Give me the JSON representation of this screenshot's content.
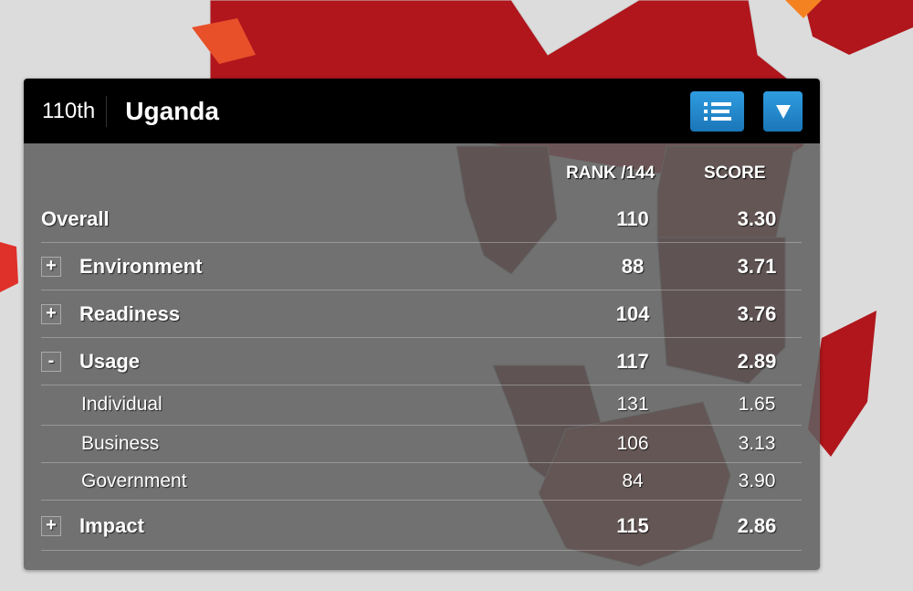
{
  "header": {
    "rank": "110th",
    "country": "Uganda"
  },
  "columns": {
    "rank": "RANK /144",
    "score": "SCORE"
  },
  "rows": [
    {
      "label": "Overall",
      "rank": "110",
      "score": "3.30",
      "toggle": ""
    },
    {
      "label": "Environment",
      "rank": "88",
      "score": "3.71",
      "toggle": "+"
    },
    {
      "label": "Readiness",
      "rank": "104",
      "score": "3.76",
      "toggle": "+"
    },
    {
      "label": "Usage",
      "rank": "117",
      "score": "2.89",
      "toggle": "-"
    },
    {
      "label": "Individual",
      "rank": "131",
      "score": "1.65"
    },
    {
      "label": "Business",
      "rank": "106",
      "score": "3.13"
    },
    {
      "label": "Government",
      "rank": "84",
      "score": "3.90"
    },
    {
      "label": "Impact",
      "rank": "115",
      "score": "2.86",
      "toggle": "+"
    }
  ],
  "icons": {
    "list": "list-icon",
    "dropdown": "triangle-down-icon"
  },
  "colors": {
    "button": "#1f85c9",
    "header": "#000000",
    "map_red": "#b0161c",
    "map_dark": "#5a0c0e",
    "map_brown": "#7a2214"
  }
}
